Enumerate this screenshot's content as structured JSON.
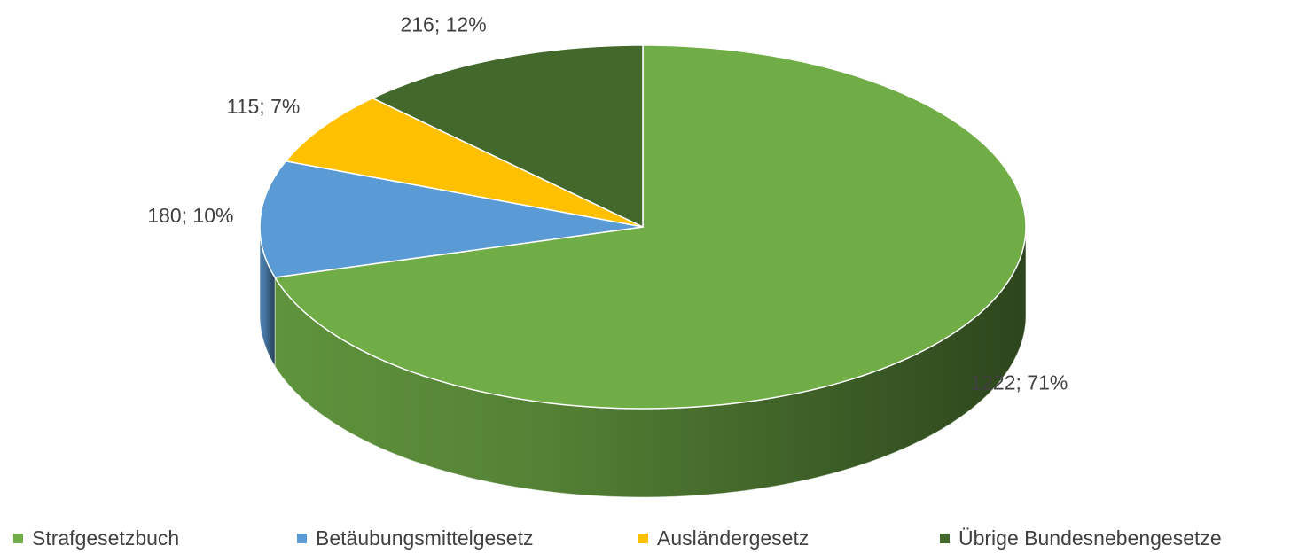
{
  "chart_data": {
    "type": "pie3d",
    "categories": [
      "Strafgesetzbuch",
      "Betäubungsmittelgesetz",
      "Ausländergesetz",
      "Übrige Bundesnebengesetze"
    ],
    "values": [
      1222,
      180,
      115,
      216
    ],
    "value_labels": [
      "1222; 71%",
      "180; 10%",
      "115; 7%",
      "216; 12%"
    ],
    "colors": [
      "#70ad47",
      "#5b9bd5",
      "#ffc000",
      "#43682b"
    ],
    "legend": "bottom"
  }
}
